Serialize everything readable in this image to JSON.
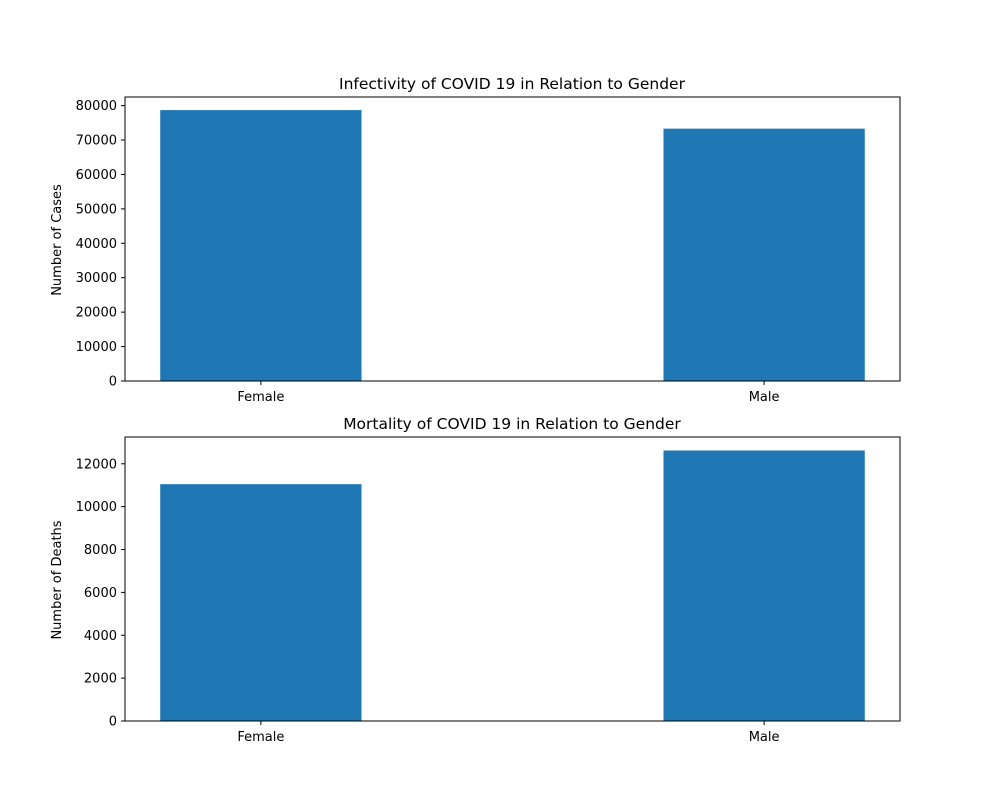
{
  "colors": {
    "bar": "#1f77b4",
    "axis": "#000000",
    "background": "#ffffff"
  },
  "chart_data": [
    {
      "type": "bar",
      "title": "Infectivity of COVID 19 in Relation to Gender",
      "xlabel": "",
      "ylabel": "Number of Cases",
      "categories": [
        "Female",
        "Male"
      ],
      "values": [
        78700,
        73300
      ],
      "ylim": [
        0,
        82500
      ],
      "yticks": [
        0,
        10000,
        20000,
        30000,
        40000,
        50000,
        60000,
        70000,
        80000
      ],
      "ytick_labels": [
        "0",
        "10000",
        "20000",
        "30000",
        "40000",
        "50000",
        "60000",
        "70000",
        "80000"
      ],
      "grid": false,
      "legend": "none"
    },
    {
      "type": "bar",
      "title": "Mortality of COVID 19 in Relation to Gender",
      "xlabel": "",
      "ylabel": "Number of Deaths",
      "categories": [
        "Female",
        "Male"
      ],
      "values": [
        11050,
        12620
      ],
      "ylim": [
        0,
        13250
      ],
      "yticks": [
        0,
        2000,
        4000,
        6000,
        8000,
        10000,
        12000
      ],
      "ytick_labels": [
        "0",
        "2000",
        "4000",
        "6000",
        "8000",
        "10000",
        "12000"
      ],
      "grid": false,
      "legend": "none"
    }
  ]
}
